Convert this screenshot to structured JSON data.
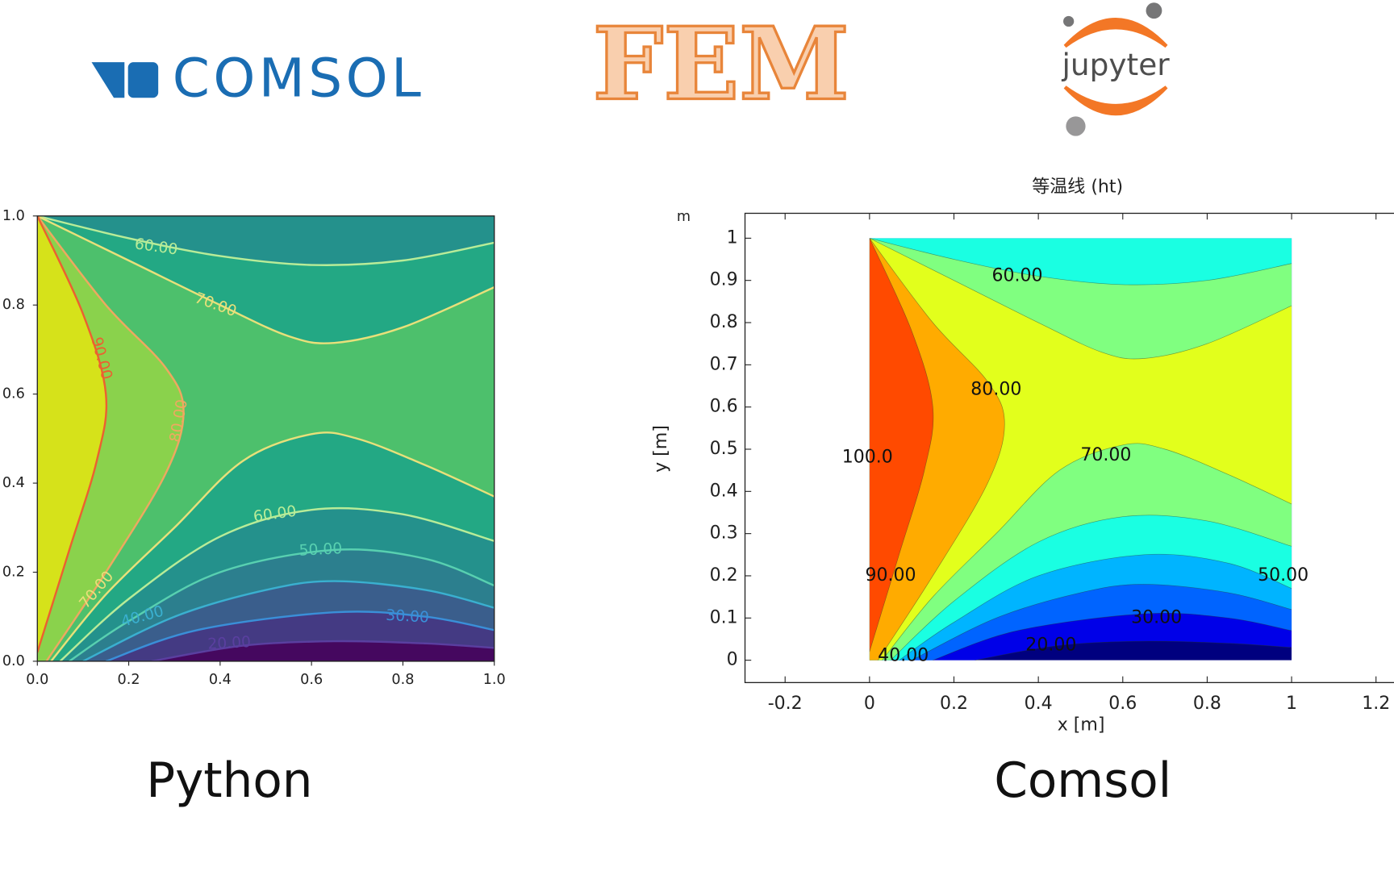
{
  "logos": {
    "comsol": "COMSOL",
    "fem": "FEM",
    "jupyter": "jupyter"
  },
  "chart_data": [
    {
      "type": "contour",
      "caption": "Python",
      "xlim": [
        0,
        1
      ],
      "ylim": [
        0,
        1
      ],
      "xticks": [
        {
          "value": 0,
          "label": "0.0"
        },
        0.2,
        0.4,
        0.6,
        0.8,
        {
          "value": 1,
          "label": "1.0"
        }
      ],
      "yticks": [
        {
          "value": 0,
          "label": "0.0"
        },
        0.2,
        0.4,
        0.6,
        0.8,
        {
          "value": 1,
          "label": "1.0"
        }
      ],
      "values": [
        60,
        70,
        90,
        80,
        60,
        50,
        70,
        40,
        30,
        20
      ],
      "value_labels": [
        "60.00",
        "70.00",
        "90.00",
        "80.00",
        "60.00",
        "50.00",
        "70.00",
        "40.00",
        "30.00",
        "20.00"
      ],
      "colors": [
        "#45085f",
        "#443a83",
        "#3a5e8c",
        "#2c7f8e",
        "#24918c",
        "#23a884",
        "#4dc06c",
        "#8ad24c",
        "#d6e21a"
      ],
      "line_colors": [
        "#5a3fa0",
        "#3a8fd8",
        "#3ab0d0",
        "#58d0b0",
        "#b8ec98",
        "#e8e07a",
        "#eea860",
        "#ec6030"
      ]
    },
    {
      "type": "contour",
      "title": "等温线 (ht)",
      "caption": "Comsol",
      "xlabel": "x [m]",
      "ylabel": "y [m]",
      "yunit": "m",
      "xlim": [
        -0.295,
        1.31
      ],
      "ylim": [
        -0.053,
        1.059
      ],
      "xticks": [
        -0.2,
        0,
        0.2,
        0.4,
        0.6,
        0.8,
        1,
        1.2
      ],
      "yticks": [
        0,
        0.1,
        0.2,
        0.3,
        0.4,
        0.5,
        0.6,
        0.7,
        0.8,
        0.9,
        1
      ],
      "values": [
        60,
        80,
        100,
        70,
        90,
        50,
        30,
        20,
        40
      ],
      "value_labels": [
        "60.00",
        "80.00",
        "100.0",
        "70.00",
        "90.00",
        "50.00",
        "30.00",
        "20.00",
        "40.00"
      ],
      "colors": [
        "#00007f",
        "#0000e8",
        "#0064ff",
        "#00b4ff",
        "#1affe2",
        "#80ff80",
        "#e2ff1c",
        "#ffab00",
        "#ff4a00"
      ]
    }
  ]
}
